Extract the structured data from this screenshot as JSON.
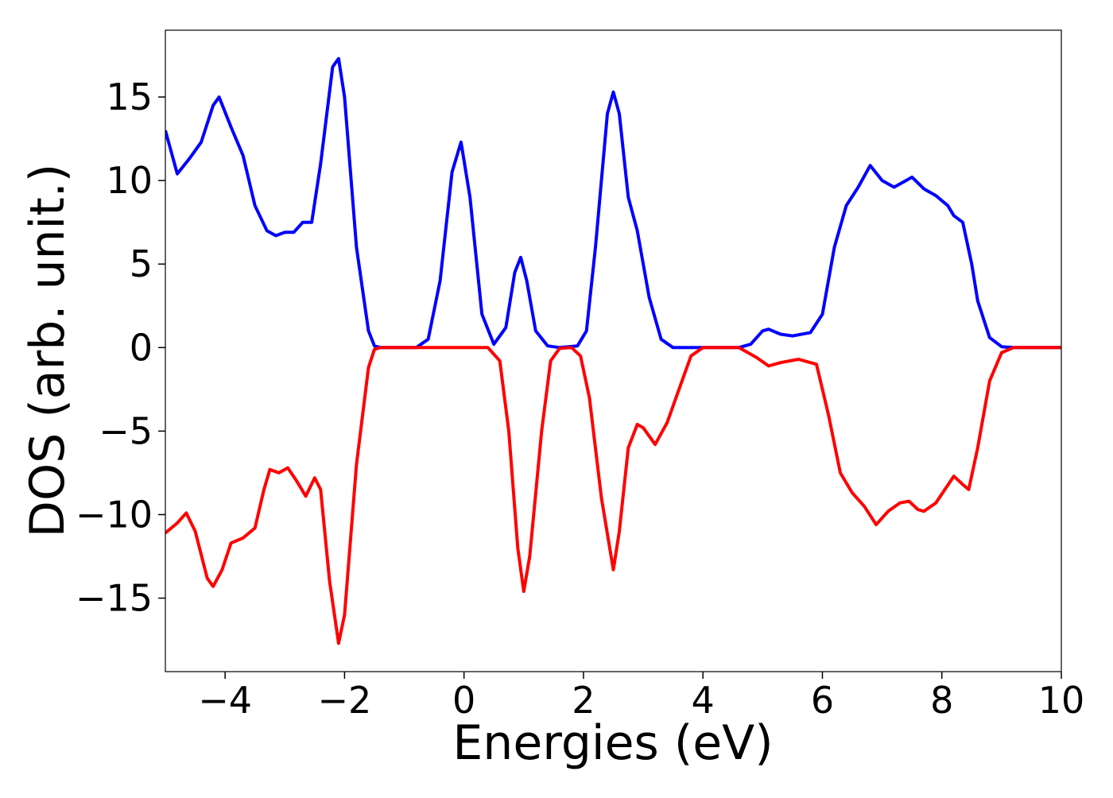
{
  "chart_data": {
    "type": "line",
    "xlabel": "Energies (eV)",
    "ylabel": "DOS (arb. unit.)",
    "xlim": [
      -5,
      10
    ],
    "ylim": [
      -19.4,
      19.0
    ],
    "xticks": [
      {
        "value": -4,
        "label": "−4"
      },
      {
        "value": -2,
        "label": "−2"
      },
      0,
      2,
      4,
      6,
      8,
      10
    ],
    "yticks": [
      {
        "value": -15,
        "label": "−15"
      },
      {
        "value": -10,
        "label": "−10"
      },
      {
        "value": -5,
        "label": "−5"
      },
      0,
      5,
      10,
      15
    ],
    "grid": false,
    "series": [
      {
        "color": "#0000ff",
        "x": [
          -5,
          -4.8,
          -4.6,
          -4.4,
          -4.2,
          -4.1,
          -3.9,
          -3.7,
          -3.5,
          -3.3,
          -3.15,
          -3.0,
          -2.85,
          -2.7,
          -2.55,
          -2.4,
          -2.2,
          -2.1,
          -2.0,
          -1.8,
          -1.6,
          -1.5,
          -1.4,
          -0.8,
          -0.6,
          -0.4,
          -0.2,
          -0.05,
          0.1,
          0.3,
          0.5,
          0.7,
          0.85,
          0.95,
          1.05,
          1.2,
          1.4,
          1.6,
          1.9,
          2.05,
          2.2,
          2.4,
          2.5,
          2.6,
          2.75,
          2.9,
          3.1,
          3.3,
          3.5,
          4.6,
          4.8,
          5.0,
          5.1,
          5.3,
          5.5,
          5.8,
          6.0,
          6.2,
          6.4,
          6.6,
          6.8,
          7.0,
          7.2,
          7.4,
          7.5,
          7.7,
          7.9,
          8.1,
          8.2,
          8.35,
          8.5,
          8.6,
          8.8,
          9.0,
          9.2,
          10
        ],
        "values": [
          13,
          10.4,
          11.3,
          12.3,
          14.5,
          15.0,
          13.2,
          11.5,
          8.5,
          7.0,
          6.7,
          6.9,
          6.9,
          7.5,
          7.5,
          11,
          16.8,
          17.3,
          15,
          6,
          1,
          0.1,
          0,
          0,
          0.5,
          4,
          10.5,
          12.3,
          9,
          2,
          0.2,
          1.2,
          4.5,
          5.4,
          4,
          1,
          0.1,
          0,
          0.1,
          1,
          6,
          14,
          15.3,
          14,
          9,
          7,
          3,
          0.5,
          0,
          0,
          0.2,
          1.0,
          1.1,
          0.8,
          0.7,
          0.9,
          2,
          6,
          8.5,
          9.6,
          10.9,
          10,
          9.6,
          10,
          10.2,
          9.5,
          9.1,
          8.5,
          7.9,
          7.5,
          5,
          2.8,
          0.6,
          0.05,
          0,
          0
        ]
      },
      {
        "color": "#ff0000",
        "x": [
          -5,
          -4.8,
          -4.65,
          -4.5,
          -4.3,
          -4.2,
          -4.05,
          -3.9,
          -3.7,
          -3.5,
          -3.35,
          -3.25,
          -3.1,
          -2.95,
          -2.8,
          -2.65,
          -2.5,
          -2.4,
          -2.25,
          -2.1,
          -2.0,
          -1.8,
          -1.6,
          -1.5,
          -1.4,
          0.4,
          0.6,
          0.75,
          0.9,
          1.0,
          1.1,
          1.3,
          1.45,
          1.6,
          1.8,
          1.95,
          2.1,
          2.3,
          2.5,
          2.6,
          2.75,
          2.9,
          3.0,
          3.2,
          3.4,
          3.6,
          3.8,
          4.0,
          4.6,
          4.9,
          5.1,
          5.3,
          5.6,
          5.9,
          6.1,
          6.3,
          6.5,
          6.7,
          6.9,
          7.1,
          7.3,
          7.45,
          7.6,
          7.7,
          7.9,
          8.05,
          8.2,
          8.35,
          8.45,
          8.6,
          8.8,
          9.0,
          9.2,
          10
        ],
        "values": [
          -11.1,
          -10.5,
          -9.9,
          -11,
          -13.8,
          -14.3,
          -13.3,
          -11.7,
          -11.4,
          -10.8,
          -8.5,
          -7.3,
          -7.5,
          -7.2,
          -8,
          -8.9,
          -7.8,
          -8.5,
          -14,
          -17.7,
          -16,
          -7,
          -1.2,
          -0.1,
          0,
          0,
          -0.8,
          -5,
          -12,
          -14.6,
          -12.5,
          -5,
          -0.8,
          -0.05,
          0,
          -0.5,
          -3,
          -9,
          -13.3,
          -11,
          -6,
          -4.6,
          -4.8,
          -5.8,
          -4.5,
          -2.5,
          -0.5,
          0,
          0,
          -0.6,
          -1.1,
          -0.9,
          -0.7,
          -1,
          -4,
          -7.5,
          -8.7,
          -9.5,
          -10.6,
          -9.8,
          -9.3,
          -9.2,
          -9.7,
          -9.8,
          -9.3,
          -8.5,
          -7.7,
          -8.2,
          -8.5,
          -6,
          -2,
          -0.3,
          0,
          0
        ]
      }
    ]
  }
}
